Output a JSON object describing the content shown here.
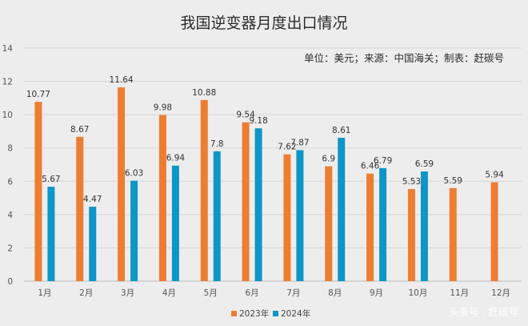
{
  "chart_data": {
    "type": "bar",
    "title": "我国逆变器月度出口情况",
    "note": "单位：美元；来源：中国海关；制表：赶碳号",
    "categories": [
      "1月",
      "2月",
      "3月",
      "4月",
      "5月",
      "6月",
      "7月",
      "8月",
      "9月",
      "10月",
      "11月",
      "12月"
    ],
    "series": [
      {
        "name": "2023年",
        "color": "#ed7d31",
        "values": [
          10.77,
          8.67,
          11.64,
          9.98,
          10.88,
          9.54,
          7.62,
          6.9,
          6.46,
          5.53,
          5.59,
          5.94
        ],
        "labels": [
          "10.77",
          "8.67",
          "11.64",
          "9.98",
          "10.88",
          "9.54",
          "7.62",
          "6.9",
          "6.46",
          "5.53",
          "5.59",
          "5.94"
        ]
      },
      {
        "name": "2024年",
        "color": "#0e96c7",
        "values": [
          5.67,
          4.47,
          6.03,
          6.94,
          7.8,
          9.18,
          7.87,
          8.61,
          6.79,
          6.59,
          null,
          null
        ],
        "labels": [
          "5.67",
          "4.47",
          "6.03",
          "6.94",
          "7.8",
          "9.18",
          "7.87",
          "8.61",
          "6.79",
          "6.59",
          "",
          ""
        ]
      }
    ],
    "y_ticks": [
      "0",
      "2",
      "4",
      "6",
      "8",
      "10",
      "12",
      "14"
    ],
    "ylim": [
      0,
      14
    ],
    "grid": true,
    "legend_position": "bottom-center"
  },
  "watermark": "头条号 · 赶碳号"
}
